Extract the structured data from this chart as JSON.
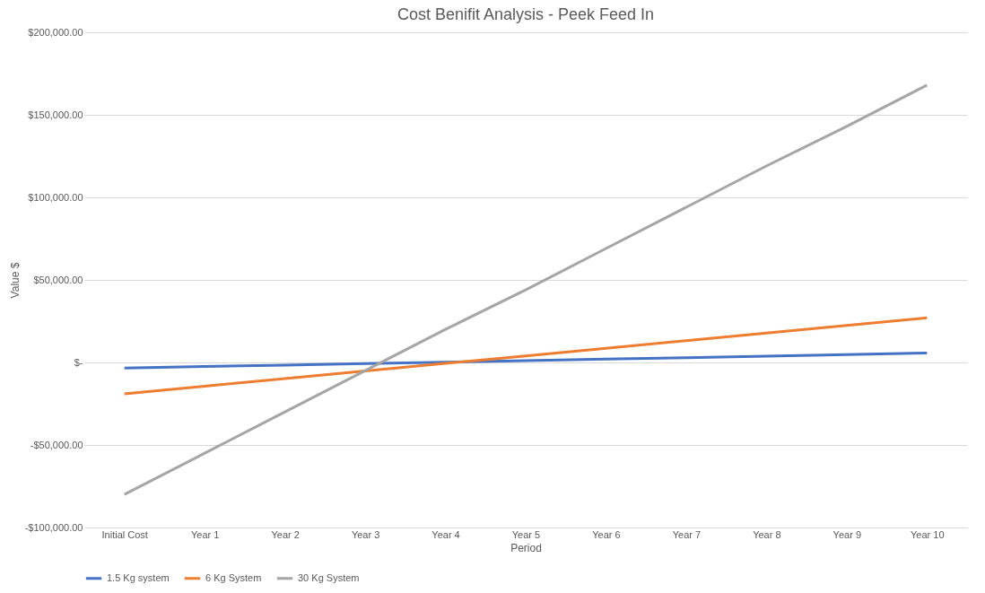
{
  "chart_data": {
    "type": "line",
    "title": "Cost Benifit Analysis - Peek Feed In",
    "xlabel": "Period",
    "ylabel": "Value $",
    "categories": [
      "Initial Cost",
      "Year 1",
      "Year 2",
      "Year 3",
      "Year 4",
      "Year 5",
      "Year 6",
      "Year 7",
      "Year 8",
      "Year 9",
      "Year 10"
    ],
    "series": [
      {
        "name": "1.5 Kg system",
        "color": "#4472c4",
        "values": [
          -3400,
          -2500,
          -1600,
          -700,
          200,
          1100,
          2000,
          2900,
          3800,
          4800,
          5700
        ]
      },
      {
        "name": "6 Kg System",
        "color": "#ed7d31",
        "values": [
          -19000,
          -14400,
          -9800,
          -5200,
          -600,
          4000,
          8600,
          13200,
          17800,
          22400,
          27000
        ]
      },
      {
        "name": "30 Kg System",
        "color": "#a5a5a5",
        "values": [
          -80000,
          -55000,
          -30000,
          -5000,
          20000,
          44000,
          69000,
          94000,
          119000,
          143000,
          168000
        ]
      }
    ],
    "ylim": [
      -100000,
      200000
    ],
    "yticks": [
      {
        "value": -100000,
        "label": "-$100,000.00"
      },
      {
        "value": -50000,
        "label": "-$50,000.00"
      },
      {
        "value": 0,
        "label": "$-"
      },
      {
        "value": 50000,
        "label": "$50,000.00"
      },
      {
        "value": 100000,
        "label": "$100,000.00"
      },
      {
        "value": 150000,
        "label": "$150,000.00"
      },
      {
        "value": 200000,
        "label": "$200,000.00"
      }
    ],
    "grid": "y",
    "legend": "bottom",
    "marker": "none",
    "line_style": "solid"
  }
}
